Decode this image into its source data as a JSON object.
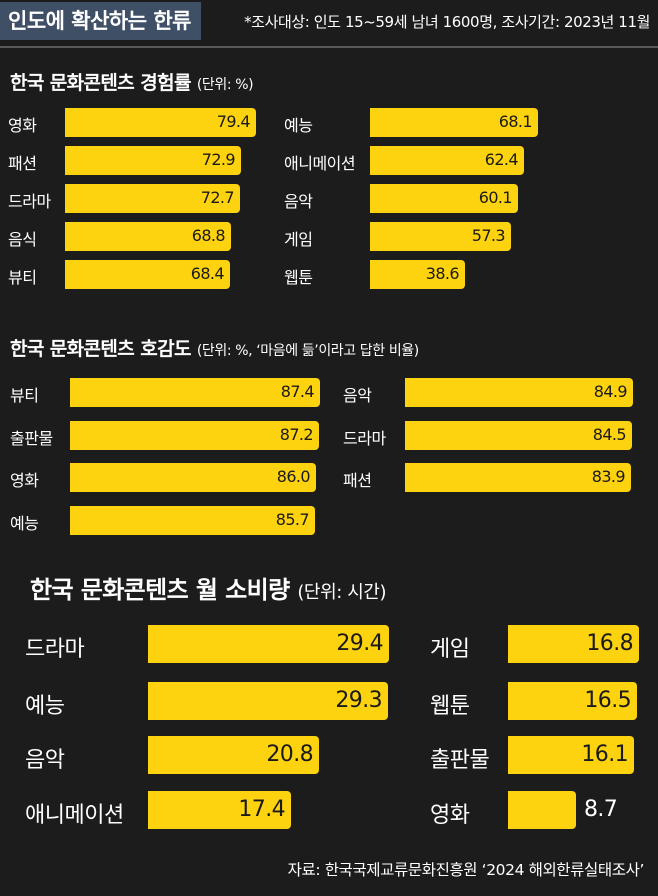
{
  "header": {
    "title": "인도에 확산하는 한류",
    "survey_note": "*조사대상: 인도 15~59세 남녀 1600명, 조사기간: 2023년 11월"
  },
  "colors": {
    "bar": "#fdd20e",
    "background": "#1c1c1c",
    "title_tag": "#3f4f66"
  },
  "source": "자료: 한국국제교류문화진흥원 ‘2024 해외한류실태조사’",
  "chart_data": [
    {
      "type": "bar",
      "title": "한국 문화콘텐츠 경험률",
      "unit": "(단위: %)",
      "left": [
        {
          "label": "영화",
          "value": 79.4,
          "text": "79.4"
        },
        {
          "label": "패션",
          "value": 72.9,
          "text": "72.9"
        },
        {
          "label": "드라마",
          "value": 72.7,
          "text": "72.7"
        },
        {
          "label": "음식",
          "value": 68.8,
          "text": "68.8"
        },
        {
          "label": "뷰티",
          "value": 68.4,
          "text": "68.4"
        }
      ],
      "right": [
        {
          "label": "예능",
          "value": 68.1,
          "text": "68.1"
        },
        {
          "label": "애니메이션",
          "value": 62.4,
          "text": "62.4"
        },
        {
          "label": "음악",
          "value": 60.1,
          "text": "60.1"
        },
        {
          "label": "게임",
          "value": 57.3,
          "text": "57.3"
        },
        {
          "label": "웹툰",
          "value": 38.6,
          "text": "38.6"
        }
      ]
    },
    {
      "type": "bar",
      "title": "한국 문화콘텐츠 호감도",
      "unit": "(단위: %, ‘마음에 듦’이라고 답한 비율)",
      "left": [
        {
          "label": "뷰티",
          "value": 87.4,
          "text": "87.4"
        },
        {
          "label": "출판물",
          "value": 87.2,
          "text": "87.2"
        },
        {
          "label": "영화",
          "value": 86.0,
          "text": "86.0"
        },
        {
          "label": "예능",
          "value": 85.7,
          "text": "85.7"
        }
      ],
      "right": [
        {
          "label": "음악",
          "value": 84.9,
          "text": "84.9"
        },
        {
          "label": "드라마",
          "value": 84.5,
          "text": "84.5"
        },
        {
          "label": "패션",
          "value": 83.9,
          "text": "83.9"
        }
      ]
    },
    {
      "type": "bar",
      "title": "한국 문화콘텐츠 월 소비량",
      "unit": "(단위: 시간)",
      "left": [
        {
          "label": "드라마",
          "value": 29.4,
          "text": "29.4"
        },
        {
          "label": "예능",
          "value": 29.3,
          "text": "29.3"
        },
        {
          "label": "음악",
          "value": 20.8,
          "text": "20.8"
        },
        {
          "label": "애니메이션",
          "value": 17.4,
          "text": "17.4"
        }
      ],
      "right": [
        {
          "label": "게임",
          "value": 16.8,
          "text": "16.8"
        },
        {
          "label": "웹툰",
          "value": 16.5,
          "text": "16.5"
        },
        {
          "label": "출판물",
          "value": 16.1,
          "text": "16.1"
        },
        {
          "label": "영화",
          "value": 8.7,
          "text": "8.7"
        }
      ]
    }
  ]
}
